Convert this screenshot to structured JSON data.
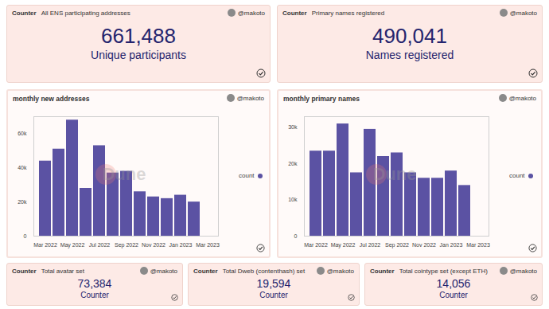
{
  "author": "@makoto",
  "counters": [
    {
      "kind": "Counter",
      "title": "All ENS participating addresses",
      "value": "661,488",
      "label": "Unique participants"
    },
    {
      "kind": "Counter",
      "title": "Primary names registered",
      "value": "490,041",
      "label": "Names registered"
    },
    {
      "kind": "Counter",
      "title": "Total avatar set",
      "value": "73,384",
      "label": "Counter"
    },
    {
      "kind": "Counter",
      "title": "Total Dweb (contenthash) set",
      "value": "19,594",
      "label": "Counter"
    },
    {
      "kind": "Counter",
      "title": "Total cointype set (except ETH)",
      "value": "14,056",
      "label": "Counter"
    }
  ],
  "chart_data": [
    {
      "type": "bar",
      "title": "monthly new addresses",
      "watermark": "Dune",
      "categories": [
        "Mar 2022",
        null,
        "May 2022",
        null,
        "Jul 2022",
        null,
        "Sep 2022",
        null,
        "Nov 2022",
        null,
        "Jan 2023",
        null,
        "Mar 2023"
      ],
      "series": [
        {
          "name": "count",
          "color": "#5b52a3",
          "values": [
            44000,
            51000,
            68000,
            28000,
            53000,
            37000,
            38000,
            26000,
            23000,
            22000,
            24000,
            20000,
            null
          ]
        }
      ],
      "ylim": [
        0,
        70000
      ],
      "yticks": [
        0,
        {
          "value": 20000,
          "label": "20k"
        },
        {
          "value": 40000,
          "label": "40k"
        },
        {
          "value": 60000,
          "label": "60k"
        }
      ],
      "grid": false,
      "legend": "right"
    },
    {
      "type": "bar",
      "title": "monthly primary names",
      "watermark": "Dune",
      "categories": [
        "Mar 2022",
        null,
        "May 2022",
        null,
        "Jul 2022",
        null,
        "Sep 2022",
        null,
        "Nov 2022",
        null,
        "Jan 2023",
        null,
        "Mar 2023"
      ],
      "series": [
        {
          "name": "count",
          "color": "#5b52a3",
          "values": [
            23500,
            23500,
            31000,
            17500,
            29500,
            22000,
            23000,
            17500,
            16000,
            16000,
            18000,
            14000,
            null
          ]
        }
      ],
      "ylim": [
        0,
        33000
      ],
      "yticks": [
        0,
        {
          "value": 10000,
          "label": "10k"
        },
        {
          "value": 20000,
          "label": "20k"
        },
        {
          "value": 30000,
          "label": "30k"
        }
      ],
      "grid": false,
      "legend": "right"
    }
  ]
}
